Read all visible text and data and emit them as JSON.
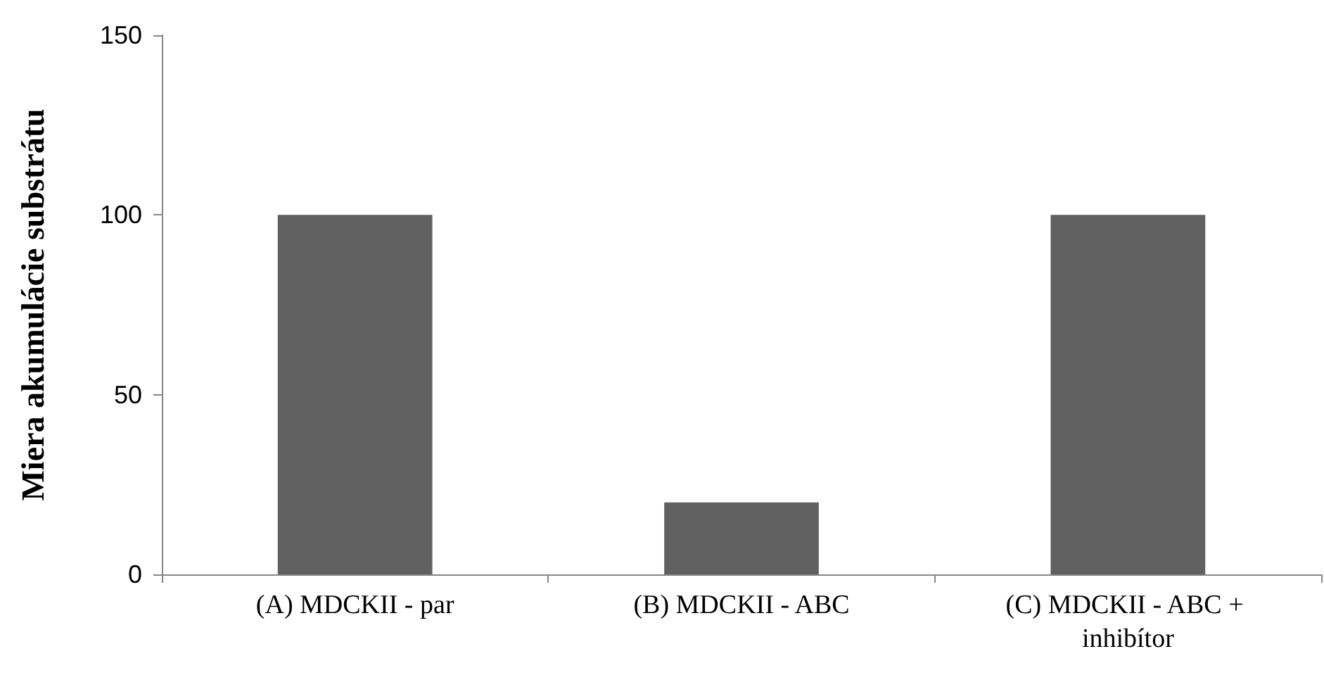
{
  "chart_data": {
    "type": "bar",
    "ylabel": "Miera akumulácie substrátu",
    "categories": [
      "(A) MDCKII - par",
      "(B) MDCKII - ABC",
      "(C) MDCKII - ABC + inhibítor"
    ],
    "values": [
      100,
      20,
      100
    ],
    "color": "#606060",
    "ylim": [
      0,
      150
    ],
    "yticks": [
      0,
      50,
      100,
      150
    ],
    "grid": false
  }
}
